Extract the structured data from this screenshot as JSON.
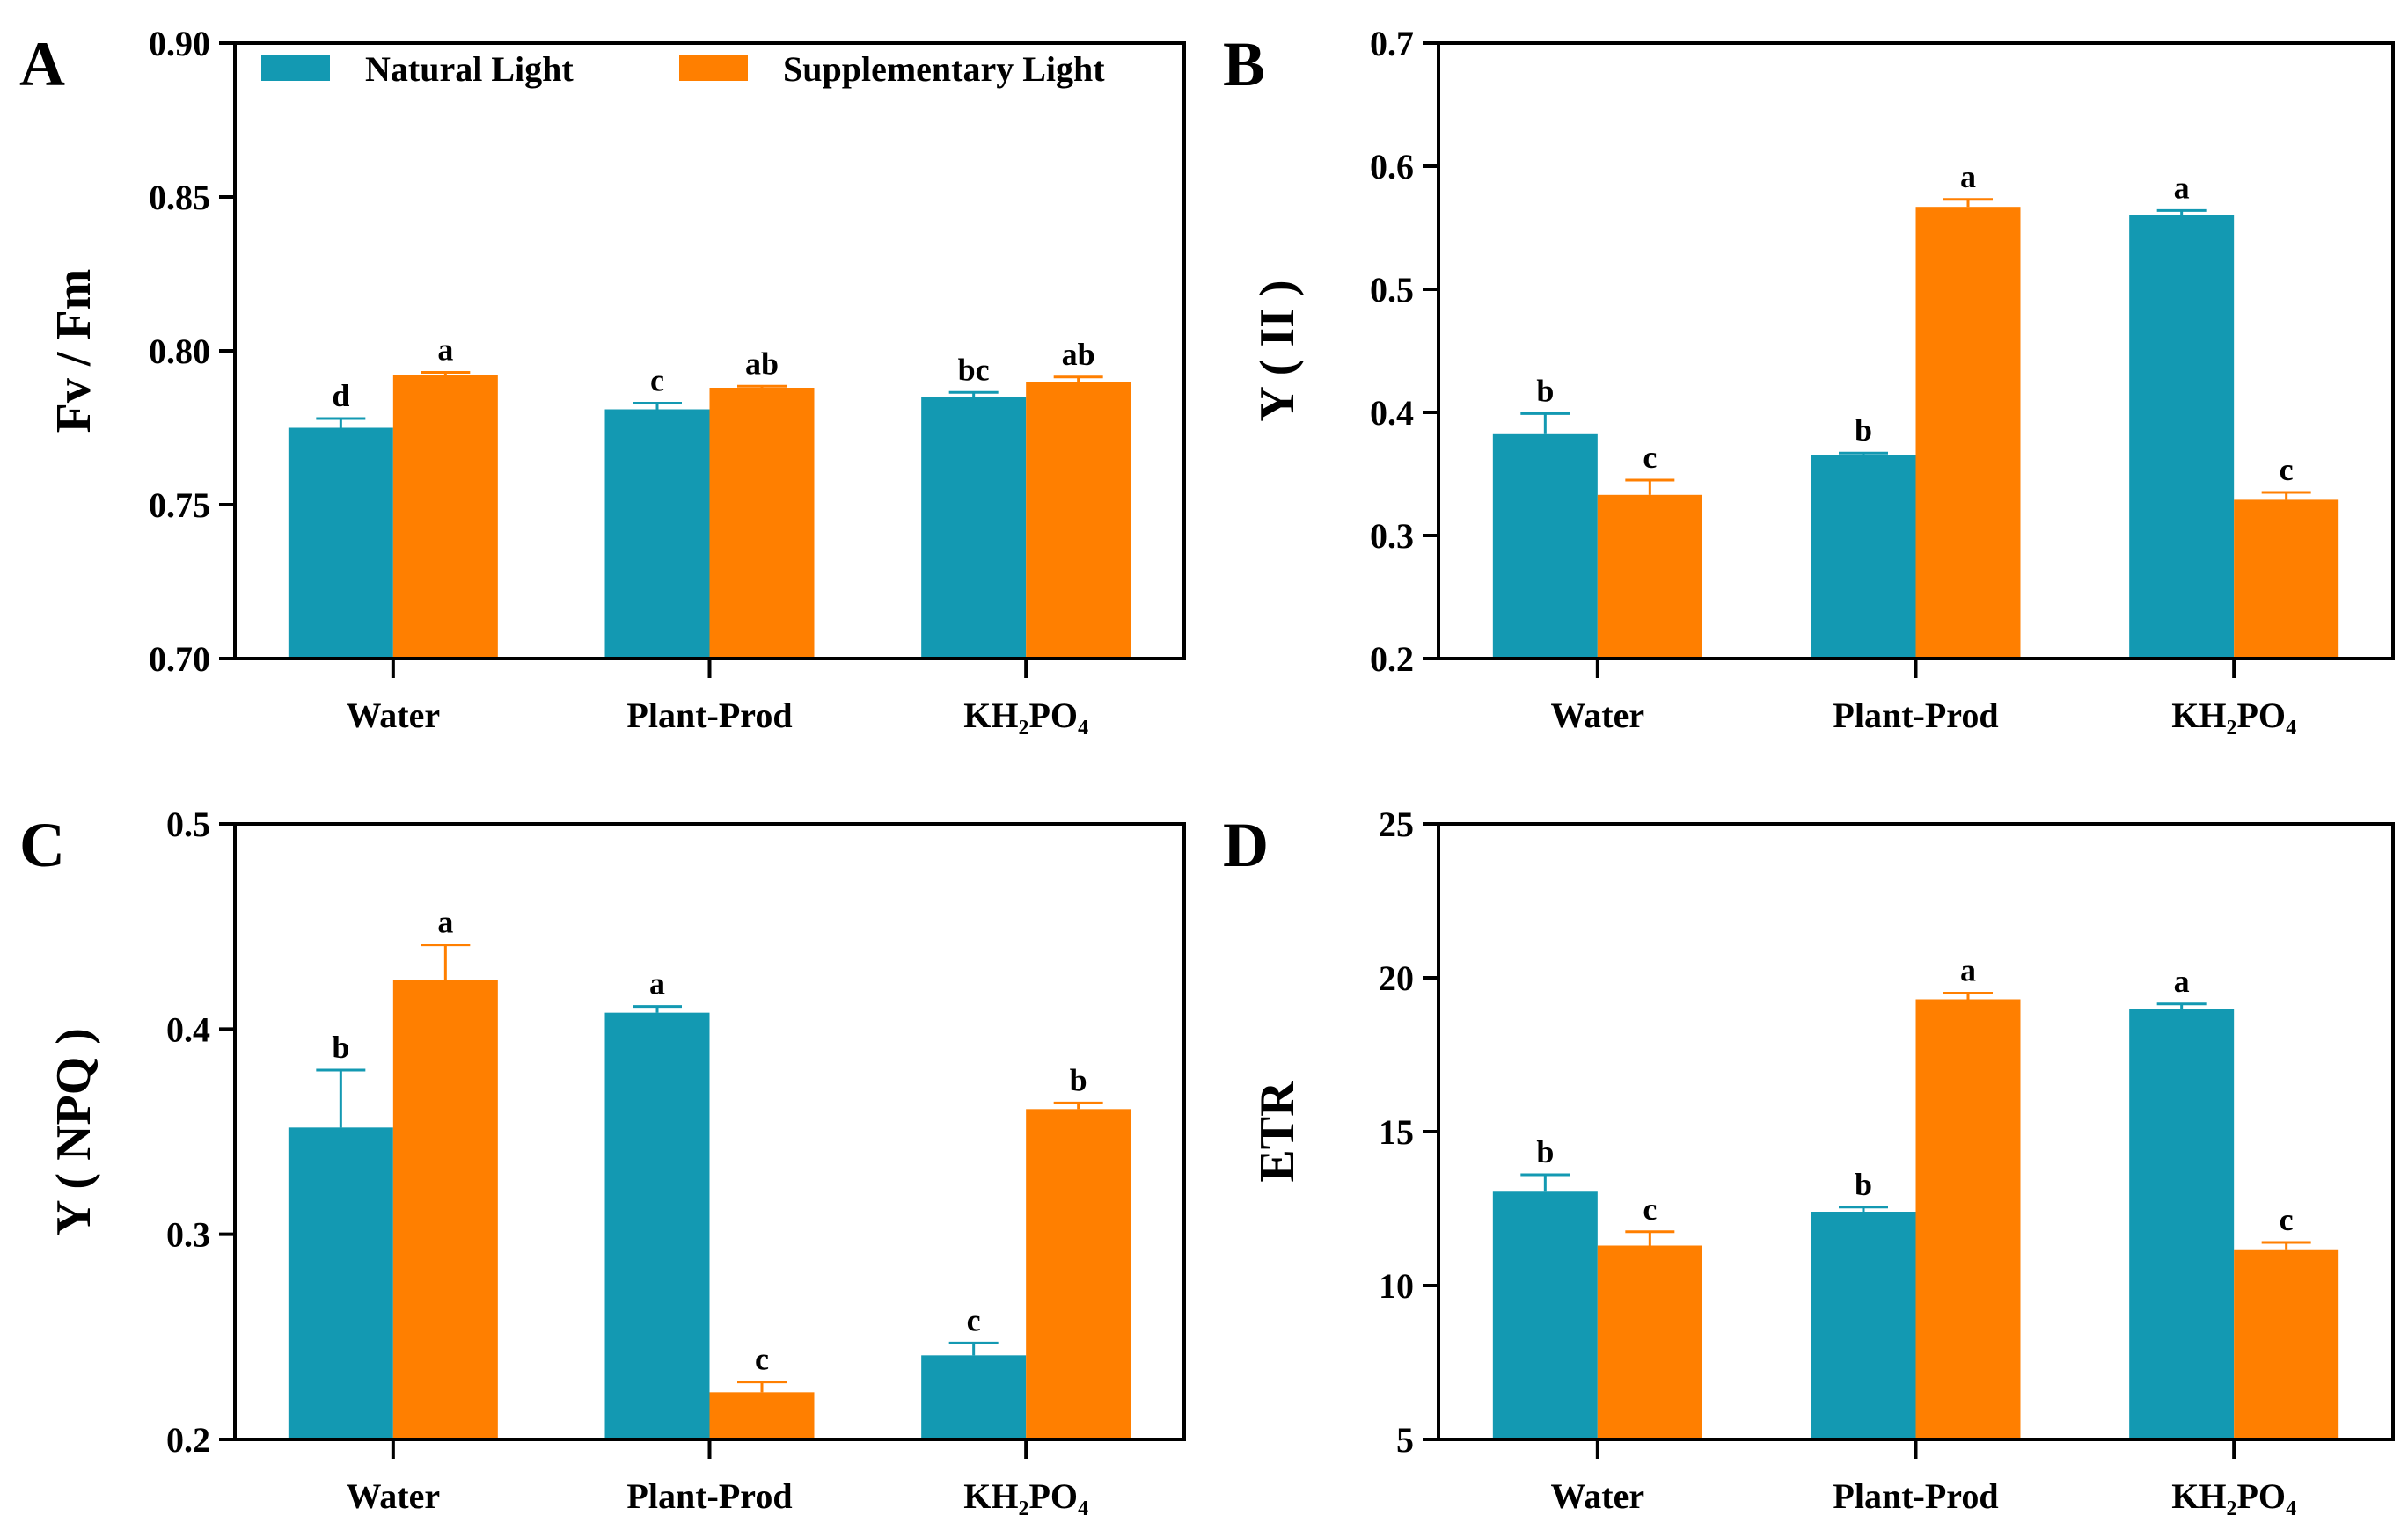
{
  "colors": {
    "natural": "#1399B2",
    "supplementary": "#FF7F00",
    "axis": "#000000"
  },
  "legend": [
    {
      "label": "Natural Light",
      "color": "#1399B2"
    },
    {
      "label": "Supplementary Light",
      "color": "#FF7F00"
    }
  ],
  "chart_data": [
    {
      "panel": "A",
      "type": "bar",
      "ylabel": "Fv / Fm",
      "categories": [
        "Water",
        "Plant-Prod",
        "KH₂PO₄"
      ],
      "ylim": [
        0.7,
        0.9
      ],
      "yticks": [
        "0.70",
        "0.75",
        "0.80",
        "0.85",
        "0.90"
      ],
      "ytick_values": [
        0.7,
        0.75,
        0.8,
        0.85,
        0.9
      ],
      "legend_position": "top",
      "series": [
        {
          "name": "Natural Light",
          "values": [
            0.775,
            0.781,
            0.785
          ],
          "errors": [
            0.003,
            0.002,
            0.0015
          ],
          "letters": [
            "d",
            "c",
            "bc"
          ]
        },
        {
          "name": "Supplementary Light",
          "values": [
            0.792,
            0.788,
            0.79
          ],
          "errors": [
            0.001,
            0.0005,
            0.0015
          ],
          "letters": [
            "a",
            "ab",
            "ab"
          ]
        }
      ]
    },
    {
      "panel": "B",
      "type": "bar",
      "ylabel": "Y ( II )",
      "categories": [
        "Water",
        "Plant-Prod",
        "KH₂PO₄"
      ],
      "ylim": [
        0.2,
        0.7
      ],
      "yticks": [
        "0.2",
        "0.3",
        "0.4",
        "0.5",
        "0.6",
        "0.7"
      ],
      "ytick_values": [
        0.2,
        0.3,
        0.4,
        0.5,
        0.6,
        0.7
      ],
      "series": [
        {
          "name": "Natural Light",
          "values": [
            0.383,
            0.365,
            0.56
          ],
          "errors": [
            0.016,
            0.002,
            0.004
          ],
          "letters": [
            "b",
            "b",
            "a"
          ]
        },
        {
          "name": "Supplementary Light",
          "values": [
            0.333,
            0.567,
            0.329
          ],
          "errors": [
            0.012,
            0.006,
            0.006
          ],
          "letters": [
            "c",
            "a",
            "c"
          ]
        }
      ]
    },
    {
      "panel": "C",
      "type": "bar",
      "ylabel": "Y ( NPQ )",
      "categories": [
        "Water",
        "Plant-Prod",
        "KH₂PO₄"
      ],
      "ylim": [
        0.2,
        0.5
      ],
      "yticks": [
        "0.2",
        "0.3",
        "0.4",
        "0.5"
      ],
      "ytick_values": [
        0.2,
        0.3,
        0.4,
        0.5
      ],
      "series": [
        {
          "name": "Natural Light",
          "values": [
            0.352,
            0.408,
            0.241
          ],
          "errors": [
            0.028,
            0.003,
            0.006
          ],
          "letters": [
            "b",
            "a",
            "c"
          ]
        },
        {
          "name": "Supplementary Light",
          "values": [
            0.424,
            0.223,
            0.361
          ],
          "errors": [
            0.017,
            0.005,
            0.003
          ],
          "letters": [
            "a",
            "c",
            "b"
          ]
        }
      ]
    },
    {
      "panel": "D",
      "type": "bar",
      "ylabel": "ETR",
      "categories": [
        "Water",
        "Plant-Prod",
        "KH₂PO₄"
      ],
      "ylim": [
        5,
        25
      ],
      "yticks": [
        "5",
        "10",
        "15",
        "20",
        "25"
      ],
      "ytick_values": [
        5,
        10,
        15,
        20,
        25
      ],
      "series": [
        {
          "name": "Natural Light",
          "values": [
            13.05,
            12.4,
            19.0
          ],
          "errors": [
            0.55,
            0.15,
            0.15
          ],
          "letters": [
            "b",
            "b",
            "a"
          ]
        },
        {
          "name": "Supplementary Light",
          "values": [
            11.3,
            19.3,
            11.15
          ],
          "errors": [
            0.45,
            0.2,
            0.25
          ],
          "letters": [
            "c",
            "a",
            "c"
          ]
        }
      ]
    }
  ]
}
